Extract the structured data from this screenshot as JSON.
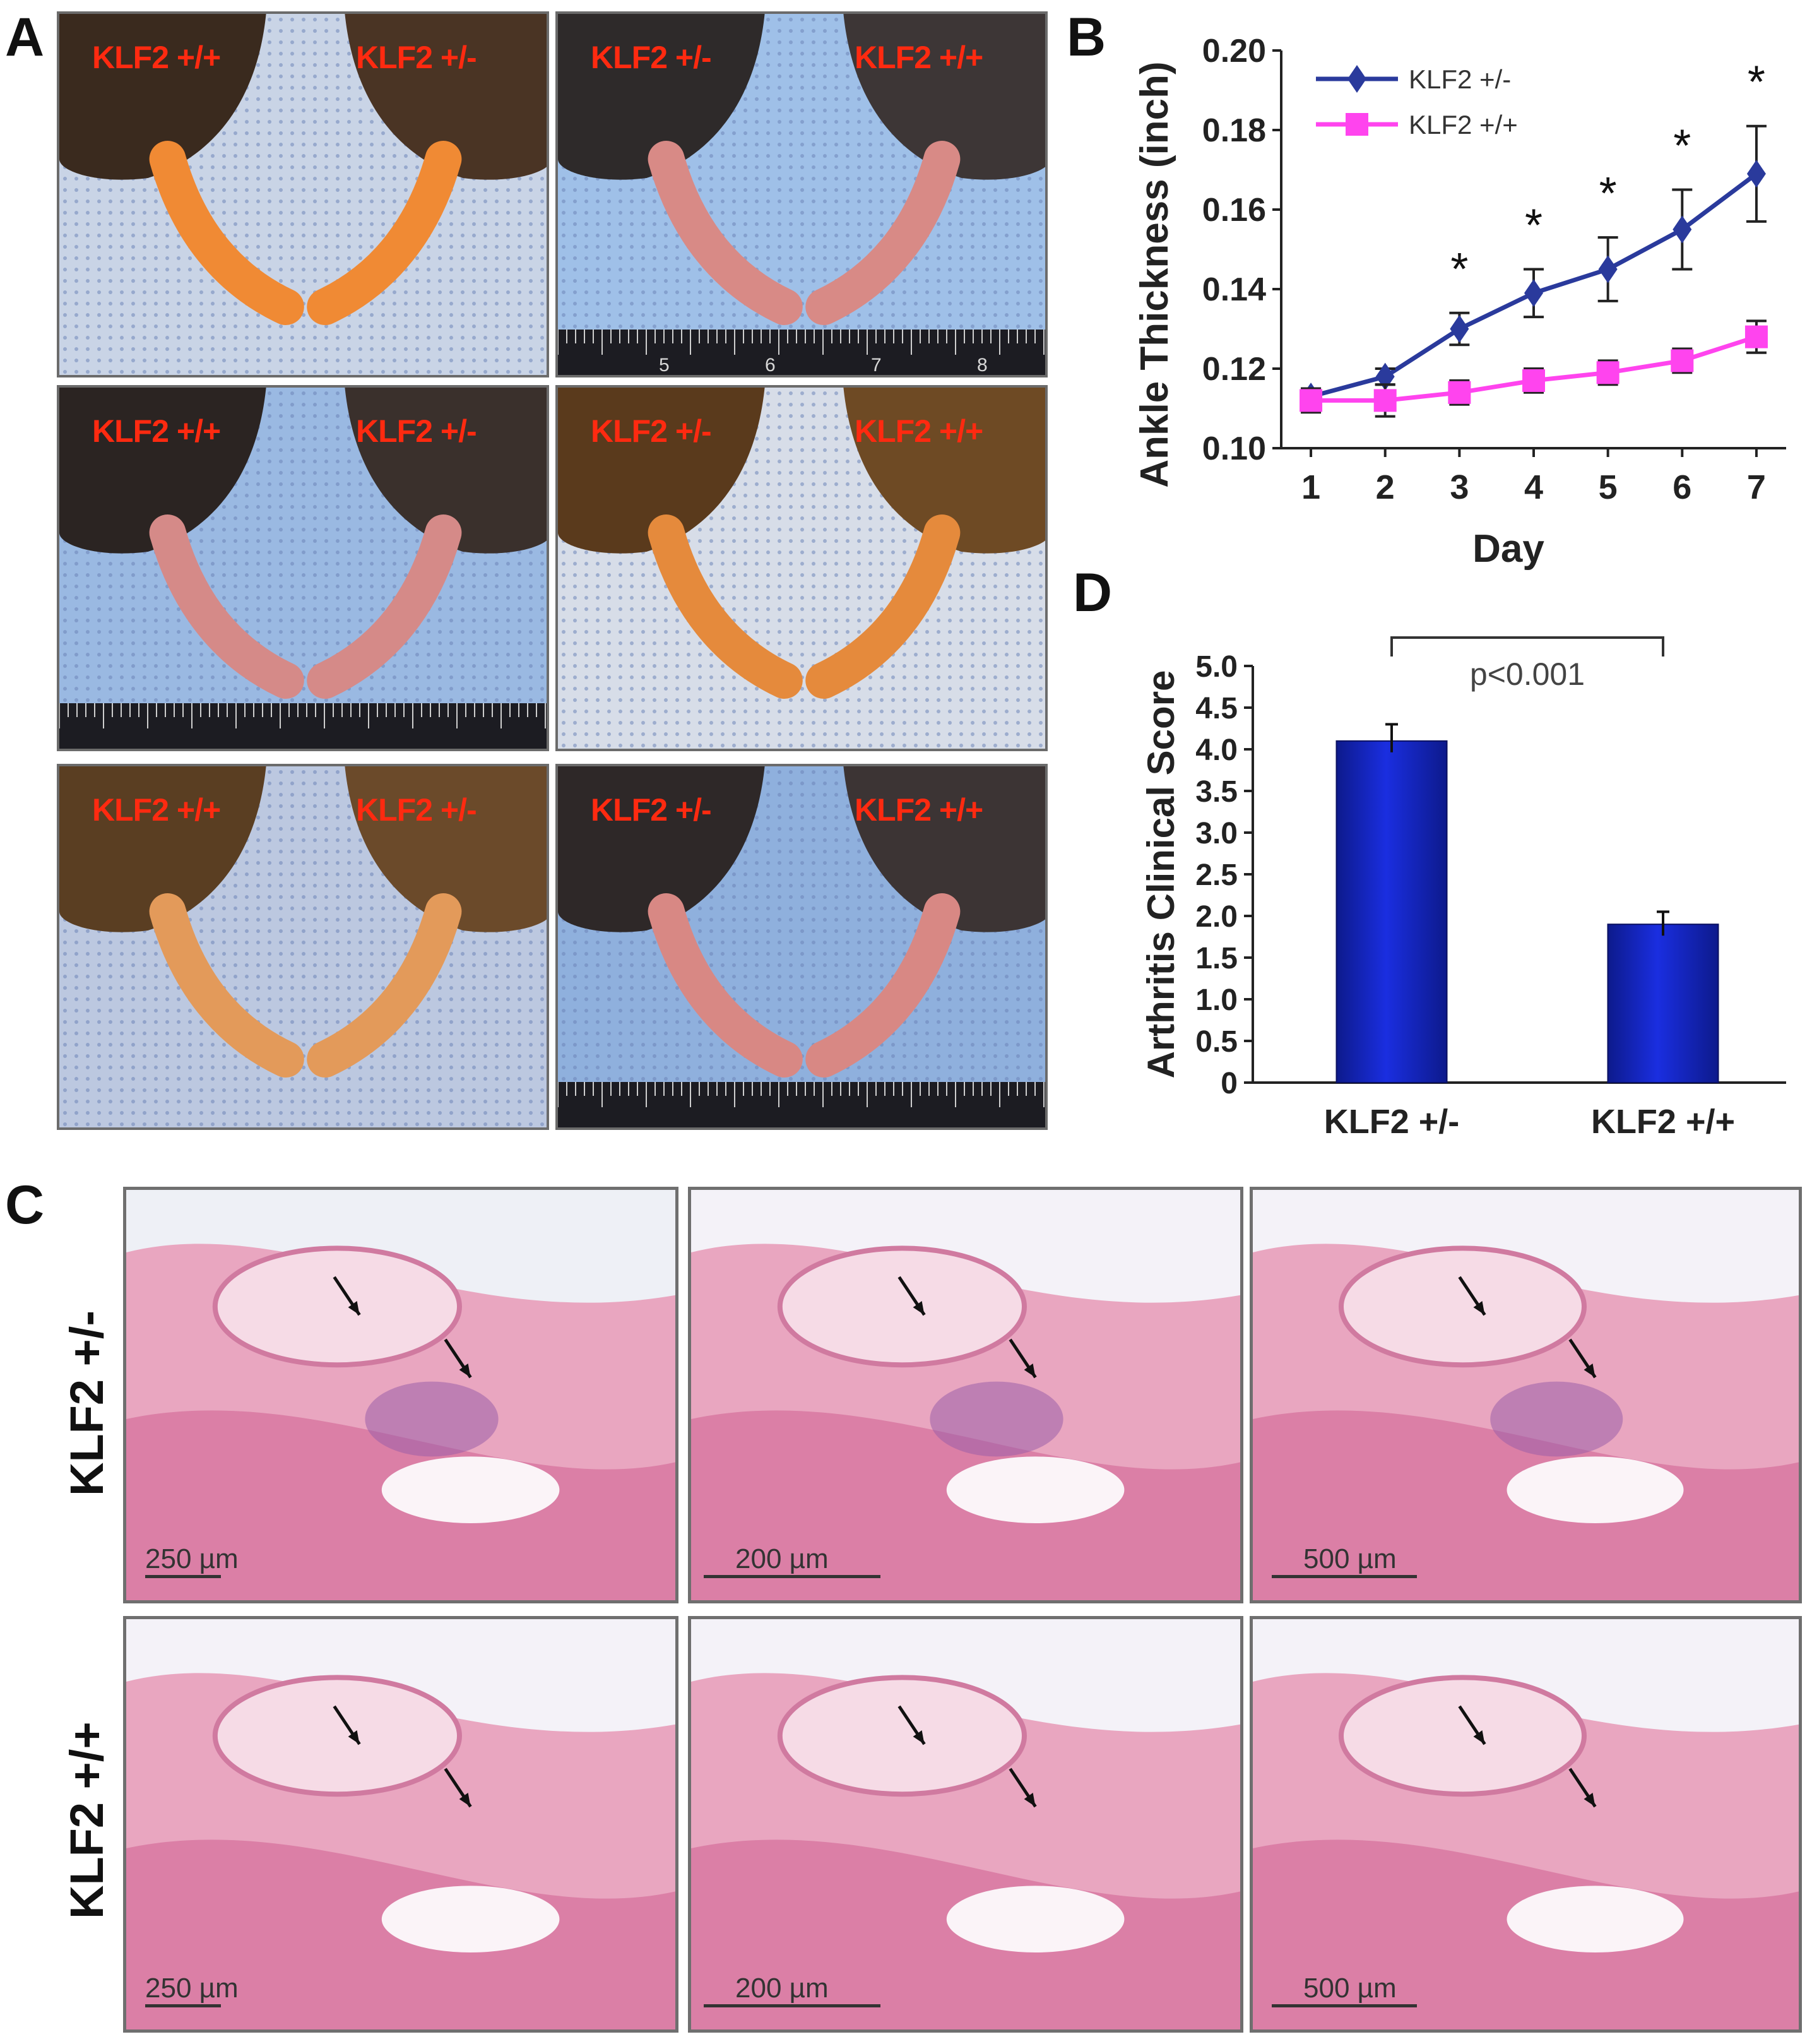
{
  "figure": {
    "panel_letters": {
      "a": "A",
      "b": "B",
      "c": "C",
      "d": "D"
    },
    "photos": [
      {
        "left_label": "KLF2 +/+",
        "right_label": "KLF2 +/-",
        "ruler": []
      },
      {
        "left_label": "KLF2 +/-",
        "right_label": "KLF2 +/+",
        "ruler": [
          "5",
          "6",
          "7",
          "8"
        ]
      },
      {
        "left_label": "KLF2 +/+",
        "right_label": "KLF2 +/-",
        "ruler": []
      },
      {
        "left_label": "KLF2 +/-",
        "right_label": "KLF2 +/+",
        "ruler": []
      },
      {
        "left_label": "KLF2 +/+",
        "right_label": "KLF2 +/-",
        "ruler": []
      },
      {
        "left_label": "KLF2 +/-",
        "right_label": "KLF2 +/+",
        "ruler": []
      }
    ],
    "histology": {
      "row_labels": [
        "KLF2 +/-",
        "KLF2 +/+"
      ],
      "scale_labels": [
        "250 µm",
        "200 µm",
        "500 µm"
      ]
    }
  },
  "chart_data": [
    {
      "panel": "B",
      "type": "line",
      "xlabel": "Day",
      "ylabel": "Ankle Thickness (inch)",
      "x": [
        1,
        2,
        3,
        4,
        5,
        6,
        7
      ],
      "xticks": [
        "1",
        "2",
        "3",
        "4",
        "5",
        "6",
        "7"
      ],
      "ylim": [
        0.1,
        0.2
      ],
      "yticks": [
        "0.10",
        "0.12",
        "0.14",
        "0.16",
        "0.18",
        "0.20"
      ],
      "grid": false,
      "legend_position": "top-left",
      "series": [
        {
          "name": "KLF2 +/-",
          "color": "#2a3a9c",
          "marker": "diamond",
          "values": [
            0.113,
            0.118,
            0.13,
            0.139,
            0.145,
            0.155,
            0.169
          ],
          "errors": [
            0.002,
            0.002,
            0.004,
            0.006,
            0.008,
            0.01,
            0.012
          ]
        },
        {
          "name": "KLF2 +/+",
          "color": "#ff44ee",
          "marker": "square",
          "values": [
            0.112,
            0.112,
            0.114,
            0.117,
            0.119,
            0.122,
            0.128
          ],
          "errors": [
            0.003,
            0.004,
            0.003,
            0.003,
            0.003,
            0.003,
            0.004
          ]
        }
      ],
      "significance": {
        "marker": "*",
        "days": [
          3,
          4,
          5,
          6,
          7
        ]
      }
    },
    {
      "panel": "D",
      "type": "bar",
      "ylabel": "Arthritis Clinical Score",
      "categories": [
        "KLF2 +/-",
        "KLF2 +/+"
      ],
      "values": [
        4.1,
        1.9
      ],
      "errors": [
        0.2,
        0.15
      ],
      "ylim": [
        0,
        5.0
      ],
      "yticks": [
        "0",
        "0.5",
        "1.0",
        "1.5",
        "2.0",
        "2.5",
        "3.0",
        "3.5",
        "4.0",
        "4.5",
        "5.0"
      ],
      "bar_color": "#1a2ee0",
      "annotation": "p<0.001"
    }
  ]
}
